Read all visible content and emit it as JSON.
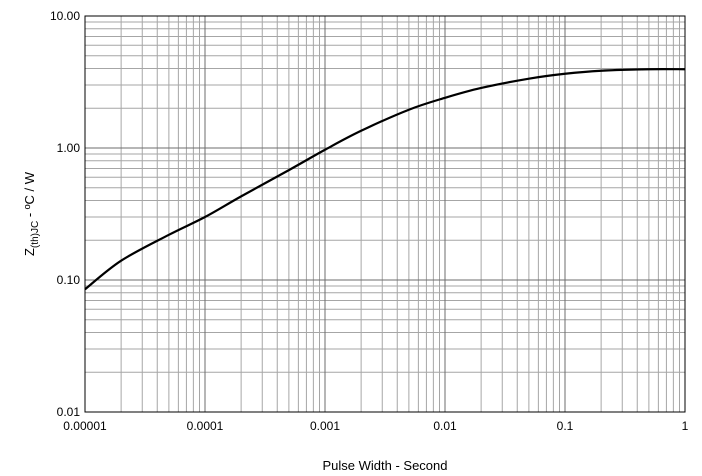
{
  "chart_data": {
    "type": "line",
    "title": "",
    "xlabel": "Pulse Width - Second",
    "ylabel": {
      "main": "Z",
      "subscript": "(th)JC",
      "suffix": " - ºC / W"
    },
    "xscale": "log",
    "yscale": "log",
    "xlim": [
      1e-05,
      1
    ],
    "ylim": [
      0.01,
      10
    ],
    "grid": "major and minor",
    "x_ticks": [
      "0.00001",
      "0.0001",
      "0.001",
      "0.01",
      "0.1",
      "1"
    ],
    "y_ticks": [
      "0.01",
      "0.10",
      "1.00",
      "10.00"
    ],
    "series": [
      {
        "x": [
          1e-05,
          2e-05,
          5e-05,
          0.0001,
          0.0002,
          0.0005,
          0.001,
          0.002,
          0.005,
          0.01,
          0.02,
          0.05,
          0.1,
          0.2,
          0.5,
          1
        ],
        "y": [
          0.085,
          0.14,
          0.22,
          0.3,
          0.43,
          0.68,
          0.97,
          1.35,
          1.95,
          2.4,
          2.85,
          3.35,
          3.65,
          3.85,
          3.95,
          3.95
        ]
      }
    ]
  }
}
